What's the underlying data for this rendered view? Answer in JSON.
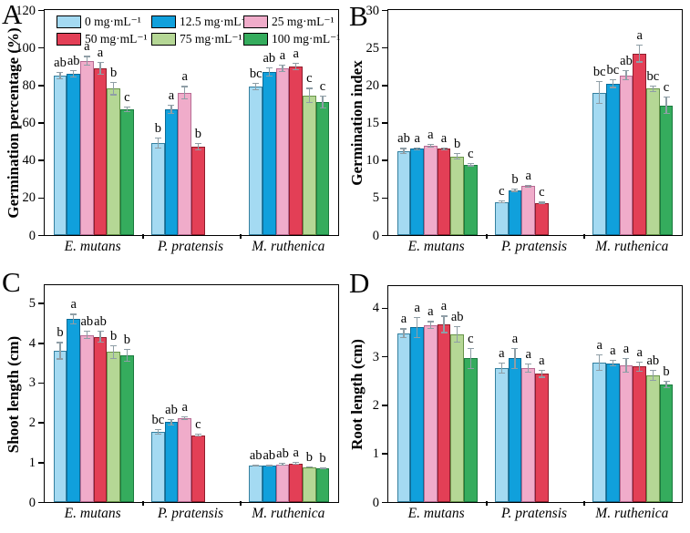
{
  "figure": {
    "background": "#ffffff",
    "axis_color": "#000000",
    "error_bar_color": "#8f9ea6",
    "categories": [
      "E. mutans",
      "P. pratensis",
      "M. ruthenica"
    ],
    "legend": {
      "items": [
        {
          "label": "0 mg·mL⁻¹",
          "fill": "#a4daf2",
          "edge": "#35809f"
        },
        {
          "label": "12.5 mg·mL⁻¹",
          "fill": "#10a0dc",
          "edge": "#0b6b96"
        },
        {
          "label": "25 mg·mL⁻¹",
          "fill": "#f0acca",
          "edge": "#b76b93"
        },
        {
          "label": "50 mg·mL⁻¹",
          "fill": "#e33f56",
          "edge": "#8f1d2c"
        },
        {
          "label": "75 mg·mL⁻¹",
          "fill": "#b5d795",
          "edge": "#68944a"
        },
        {
          "label": "100 mg·mL⁻¹",
          "fill": "#35ac5d",
          "edge": "#1a7a3e"
        }
      ]
    }
  },
  "chart_data": [
    {
      "type": "bar",
      "panel": "A",
      "ylabel": "Germination percentage (%)",
      "ylim": [
        0,
        120
      ],
      "yticks": [
        0,
        20,
        40,
        60,
        80,
        100,
        120
      ],
      "categories": [
        "E. mutans",
        "P. pratensis",
        "M. ruthenica"
      ],
      "show_legend": true,
      "legend_position": "top-inside",
      "series": [
        {
          "name": "0 mg·mL⁻¹",
          "values": [
            85,
            49,
            79
          ],
          "errors": [
            2,
            3,
            2
          ],
          "letters": [
            "ab",
            "b",
            "bc"
          ]
        },
        {
          "name": "12.5 mg·mL⁻¹",
          "values": [
            86,
            67,
            87
          ],
          "errors": [
            2,
            2.5,
            2.5
          ],
          "letters": [
            "ab",
            "a",
            "ab"
          ]
        },
        {
          "name": "25 mg·mL⁻¹",
          "values": [
            93,
            76,
            89
          ],
          "errors": [
            2.5,
            3.5,
            2
          ],
          "letters": [
            "a",
            "a",
            "a"
          ]
        },
        {
          "name": "50 mg·mL⁻¹",
          "values": [
            89,
            47,
            90
          ],
          "errors": [
            3.5,
            2,
            2
          ],
          "letters": [
            "a",
            "b",
            "a"
          ]
        },
        {
          "name": "75 mg·mL⁻¹",
          "values": [
            78,
            null,
            74.5
          ],
          "errors": [
            3.5,
            null,
            4
          ],
          "letters": [
            "b",
            null,
            "c"
          ]
        },
        {
          "name": "100 mg·mL⁻¹",
          "values": [
            67,
            null,
            71
          ],
          "errors": [
            1.5,
            null,
            3.5
          ],
          "letters": [
            "c",
            null,
            "c"
          ]
        }
      ]
    },
    {
      "type": "bar",
      "panel": "B",
      "ylabel": "Germination index",
      "ylim": [
        0,
        30
      ],
      "yticks": [
        0,
        5,
        10,
        15,
        20,
        25,
        30
      ],
      "categories": [
        "E. mutans",
        "P. pratensis",
        "M. ruthenica"
      ],
      "show_legend": false,
      "series": [
        {
          "name": "0 mg·mL⁻¹",
          "values": [
            11.2,
            4.4,
            19.0
          ],
          "errors": [
            0.4,
            0.2,
            1.5
          ],
          "letters": [
            "ab",
            "c",
            "bc"
          ]
        },
        {
          "name": "12.5 mg·mL⁻¹",
          "values": [
            11.5,
            6.0,
            20.2
          ],
          "errors": [
            0.2,
            0.25,
            0.6
          ],
          "letters": [
            "a",
            "b",
            "bc"
          ]
        },
        {
          "name": "25 mg·mL⁻¹",
          "values": [
            11.9,
            6.5,
            21.3
          ],
          "errors": [
            0.3,
            0.2,
            0.7
          ],
          "letters": [
            "a",
            "a",
            "ab"
          ]
        },
        {
          "name": "50 mg·mL⁻¹",
          "values": [
            11.5,
            4.3,
            24.2
          ],
          "errors": [
            0.2,
            0.15,
            1.2
          ],
          "letters": [
            "a",
            "c",
            "a"
          ]
        },
        {
          "name": "75 mg·mL⁻¹",
          "values": [
            10.5,
            null,
            19.5
          ],
          "errors": [
            0.4,
            null,
            0.4
          ],
          "letters": [
            "b",
            null,
            "bc"
          ]
        },
        {
          "name": "100 mg·mL⁻¹",
          "values": [
            9.4,
            null,
            17.3
          ],
          "errors": [
            0.25,
            null,
            1.2
          ],
          "letters": [
            "c",
            null,
            "c"
          ]
        }
      ]
    },
    {
      "type": "bar",
      "panel": "C",
      "ylabel": "Shoot length (cm)",
      "ylim": [
        0,
        5.45
      ],
      "yticks": [
        0,
        1,
        2,
        3,
        4,
        5
      ],
      "categories": [
        "E. mutans",
        "P. pratensis",
        "M. ruthenica"
      ],
      "show_legend": false,
      "series": [
        {
          "name": "0 mg·mL⁻¹",
          "values": [
            3.8,
            1.77,
            0.92
          ],
          "errors": [
            0.22,
            0.07,
            0.03
          ],
          "letters": [
            "b",
            "bc",
            "ab"
          ]
        },
        {
          "name": "12.5 mg·mL⁻¹",
          "values": [
            4.6,
            2.01,
            0.92
          ],
          "errors": [
            0.13,
            0.08,
            0.03
          ],
          "letters": [
            "a",
            "ab",
            "ab"
          ]
        },
        {
          "name": "25 mg·mL⁻¹",
          "values": [
            4.2,
            2.1,
            0.95
          ],
          "errors": [
            0.1,
            0.05,
            0.03
          ],
          "letters": [
            "ab",
            "a",
            "ab"
          ]
        },
        {
          "name": "50 mg·mL⁻¹",
          "values": [
            4.15,
            1.68,
            0.97
          ],
          "errors": [
            0.15,
            0.04,
            0.04
          ],
          "letters": [
            "ab",
            "c",
            "a"
          ]
        },
        {
          "name": "75 mg·mL⁻¹",
          "values": [
            3.77,
            null,
            0.88
          ],
          "errors": [
            0.18,
            null,
            0.02
          ],
          "letters": [
            "b",
            null,
            "b"
          ]
        },
        {
          "name": "100 mg·mL⁻¹",
          "values": [
            3.68,
            null,
            0.85
          ],
          "errors": [
            0.16,
            null,
            0.02
          ],
          "letters": [
            "b",
            null,
            "b"
          ]
        }
      ]
    },
    {
      "type": "bar",
      "panel": "D",
      "ylabel": "Root length (cm)",
      "ylim": [
        0,
        4.45
      ],
      "yticks": [
        0,
        1,
        2,
        3,
        4
      ],
      "categories": [
        "E. mutans",
        "P. pratensis",
        "M. ruthenica"
      ],
      "show_legend": false,
      "series": [
        {
          "name": "0 mg·mL⁻¹",
          "values": [
            3.48,
            2.76,
            2.87
          ],
          "errors": [
            0.1,
            0.12,
            0.17
          ],
          "letters": [
            "a",
            "a",
            "a"
          ]
        },
        {
          "name": "12.5 mg·mL⁻¹",
          "values": [
            3.6,
            2.96,
            2.86
          ],
          "errors": [
            0.22,
            0.22,
            0.07
          ],
          "letters": [
            "a",
            "a",
            "a"
          ]
        },
        {
          "name": "25 mg·mL⁻¹",
          "values": [
            3.65,
            2.76,
            2.82
          ],
          "errors": [
            0.08,
            0.1,
            0.15
          ],
          "letters": [
            "a",
            "a",
            "a"
          ]
        },
        {
          "name": "50 mg·mL⁻¹",
          "values": [
            3.66,
            2.64,
            2.79
          ],
          "errors": [
            0.18,
            0.08,
            0.1
          ],
          "letters": [
            "a",
            "a",
            "a"
          ]
        },
        {
          "name": "75 mg·mL⁻¹",
          "values": [
            3.45,
            null,
            2.61
          ],
          "errors": [
            0.17,
            null,
            0.12
          ],
          "letters": [
            "ab",
            null,
            "ab"
          ]
        },
        {
          "name": "100 mg·mL⁻¹",
          "values": [
            2.96,
            null,
            2.42
          ],
          "errors": [
            0.22,
            null,
            0.08
          ],
          "letters": [
            "c",
            null,
            "b"
          ]
        }
      ]
    }
  ]
}
